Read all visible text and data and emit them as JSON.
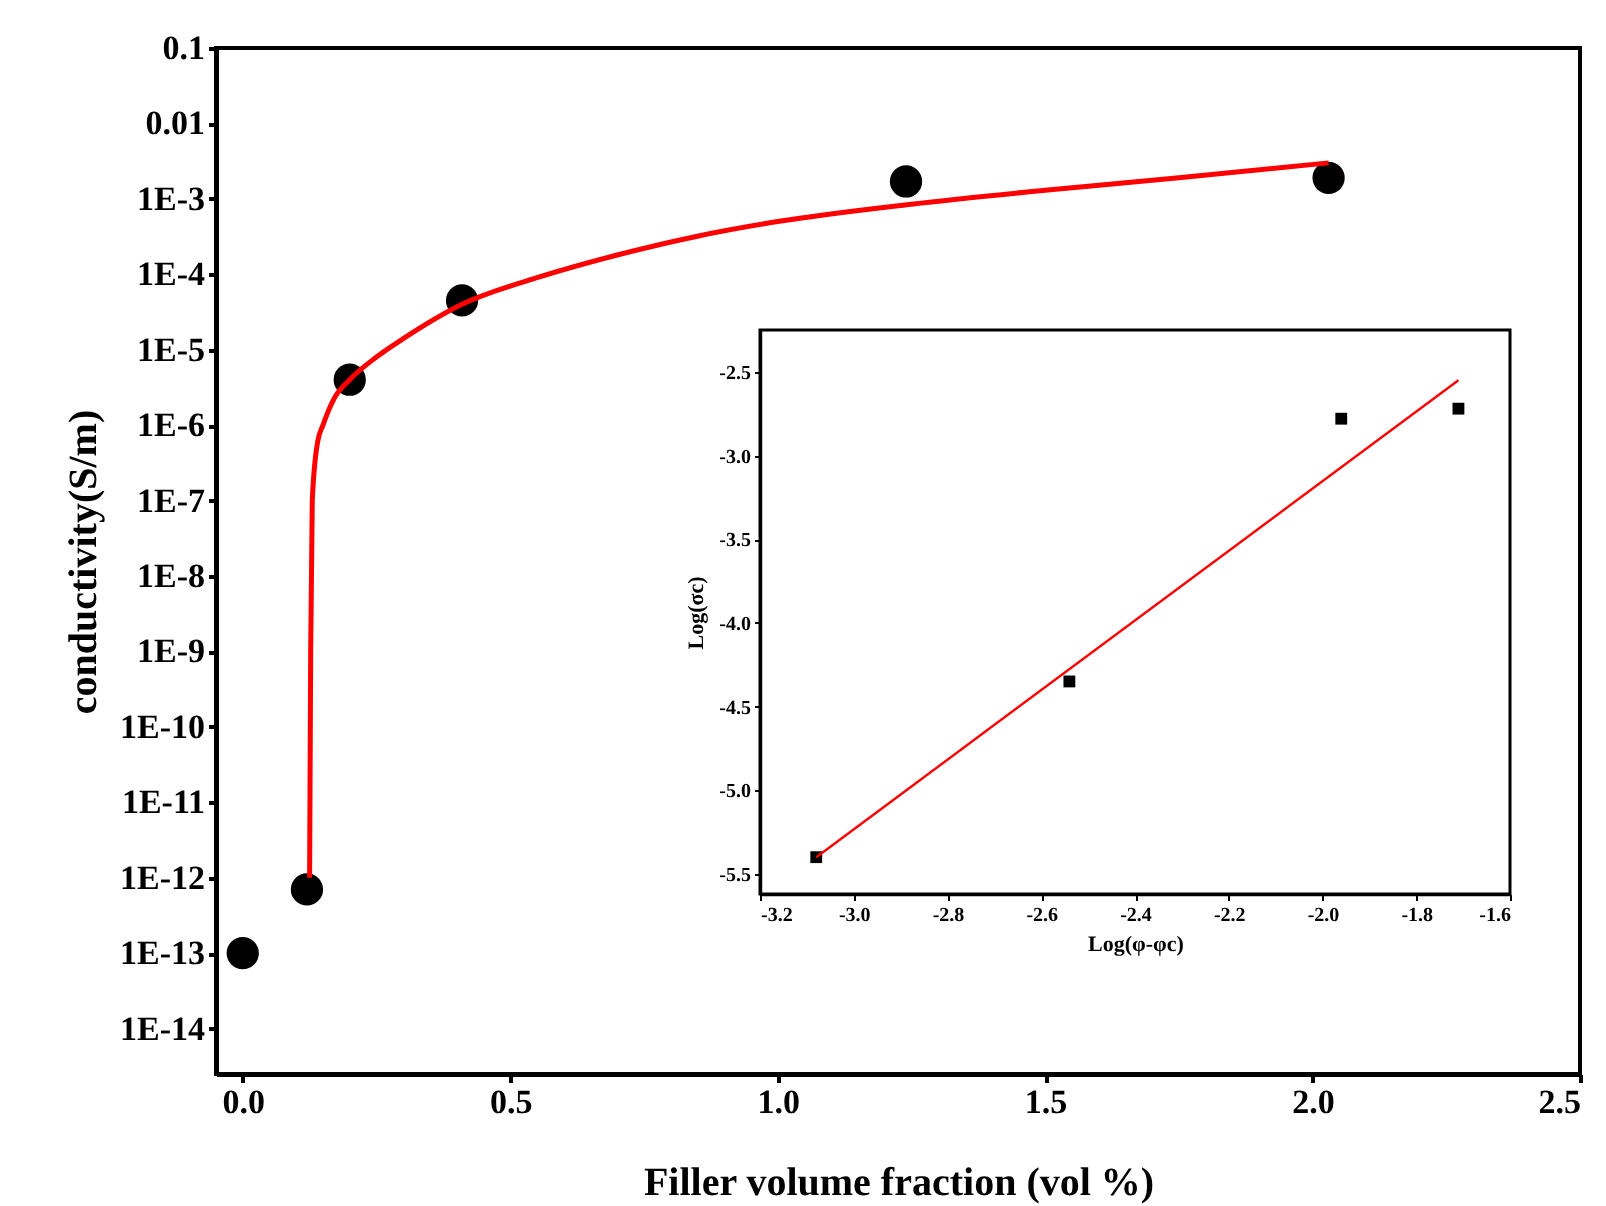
{
  "chart_data": [
    {
      "type": "scatter",
      "xlabel": "Filler volume fraction (vol %)",
      "ylabel": "conductivity(S/m)",
      "log": "y",
      "grid": false,
      "xlim": [
        -0.05,
        2.5
      ],
      "xticks": [
        {
          "value": 0,
          "label": "0.0"
        },
        0.5,
        {
          "value": 1,
          "label": "1.0"
        },
        1.5,
        {
          "value": 2,
          "label": "2.0"
        },
        2.5
      ],
      "ylim": [
        2.5e-15,
        0.1
      ],
      "yticks": [
        {
          "value": 1e-14,
          "label": "1E-14"
        },
        {
          "value": 1e-13,
          "label": "1E-13"
        },
        {
          "value": 1e-12,
          "label": "1E-12"
        },
        {
          "value": 1e-11,
          "label": "1E-11"
        },
        {
          "value": 1e-10,
          "label": "1E-10"
        },
        {
          "value": 1e-09,
          "label": "1E-9"
        },
        {
          "value": 1e-08,
          "label": "1E-8"
        },
        {
          "value": 1e-07,
          "label": "1E-7"
        },
        {
          "value": 1e-06,
          "label": "1E-6"
        },
        {
          "value": 1e-05,
          "label": "1E-5"
        },
        {
          "value": 0.0001,
          "label": "1E-4"
        },
        {
          "value": 0.001,
          "label": "1E-3"
        },
        0.01,
        0.1
      ],
      "series": [
        {
          "marker": "circle",
          "color": "#000000",
          "x": [
            0,
            0.12,
            0.2,
            0.41,
            1.24,
            2.03
          ],
          "values": [
            1e-13,
            7e-13,
            4e-06,
            4.5e-05,
            0.0017,
            0.0019
          ]
        },
        {
          "type": "line",
          "line_style": "solid",
          "marker": "none",
          "color": "#ff0000",
          "x": [
            0.125,
            0.127,
            0.13,
            0.14,
            0.15,
            0.17,
            0.2,
            0.25,
            0.3,
            0.41,
            0.55,
            0.7,
            0.85,
            1.0,
            1.25,
            1.5,
            1.75,
            2.03
          ],
          "values": [
            1e-12,
            1e-09,
            1e-07,
            6e-07,
            1e-06,
            2.2e-06,
            4e-06,
            8e-06,
            1.4e-05,
            4e-05,
            9e-05,
            0.00018,
            0.00032,
            0.0005,
            0.00085,
            0.0013,
            0.0019,
            0.003
          ]
        }
      ]
    },
    {
      "type": "scatter",
      "xlabel": "Log(φ-φc)",
      "ylabel": "Log(σc)",
      "grid": false,
      "xlim": [
        -3.2,
        -1.6
      ],
      "xticks": [
        -3.2,
        {
          "value": -3.0,
          "label": "-3.0"
        },
        -2.8,
        -2.6,
        -2.4,
        -2.2,
        {
          "value": -2.0,
          "label": "-2.0"
        },
        -1.8,
        -1.6
      ],
      "ylim": [
        -5.62,
        -2.25
      ],
      "yticks": [
        -5.5,
        {
          "value": -5.0,
          "label": "-5.0"
        },
        -4.5,
        {
          "value": -4.0,
          "label": "-4.0"
        },
        -3.5,
        {
          "value": -3.0,
          "label": "-3.0"
        },
        -2.5
      ],
      "series": [
        {
          "marker": "square",
          "color": "#000000",
          "x": [
            -3.08,
            -2.54,
            -1.96,
            -1.71
          ],
          "values": [
            -5.4,
            -4.35,
            -2.78,
            -2.72
          ]
        },
        {
          "type": "line",
          "line_style": "solid",
          "marker": "none",
          "color": "#ff0000",
          "x": [
            -3.08,
            -1.71
          ],
          "values": [
            -5.4,
            -2.55
          ]
        }
      ]
    }
  ]
}
